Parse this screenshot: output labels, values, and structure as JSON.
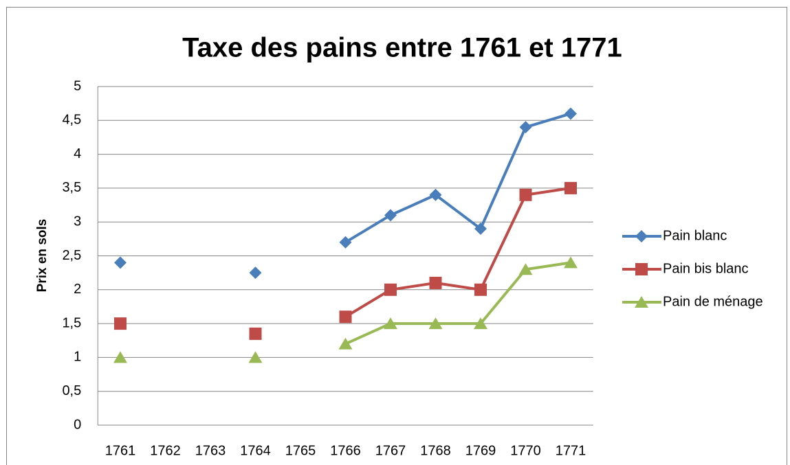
{
  "chart_data": {
    "type": "line",
    "title": "Taxe des pains entre 1761 et 1771",
    "y_label": "Prix en sols",
    "categories": [
      "1761",
      "1762",
      "1763",
      "1764",
      "1765",
      "1766",
      "1767",
      "1768",
      "1769",
      "1770",
      "1771"
    ],
    "series": [
      {
        "name": "Pain blanc",
        "color": "#4a7ebb",
        "marker": "diamond",
        "values": [
          2.4,
          null,
          null,
          2.25,
          null,
          2.7,
          3.1,
          3.4,
          2.9,
          4.4,
          4.6
        ]
      },
      {
        "name": "Pain bis blanc",
        "color": "#be4b48",
        "marker": "square",
        "values": [
          1.5,
          null,
          null,
          1.35,
          null,
          1.6,
          2.0,
          2.1,
          2.0,
          3.4,
          3.5
        ]
      },
      {
        "name": "Pain de ménage",
        "color": "#98b954",
        "marker": "triangle",
        "values": [
          1.0,
          null,
          null,
          1.0,
          null,
          1.2,
          1.5,
          1.5,
          1.5,
          2.3,
          2.4
        ]
      }
    ],
    "ylim": [
      0,
      5
    ],
    "yticks": [
      0,
      {
        "value": 0.5,
        "label": "0,5"
      },
      1,
      {
        "value": 1.5,
        "label": "1,5"
      },
      2,
      {
        "value": 2.5,
        "label": "2,5"
      },
      3,
      {
        "value": 3.5,
        "label": "3,5"
      },
      4,
      {
        "value": 4.5,
        "label": "4,5"
      },
      5
    ],
    "grid": true,
    "legend": "right"
  }
}
